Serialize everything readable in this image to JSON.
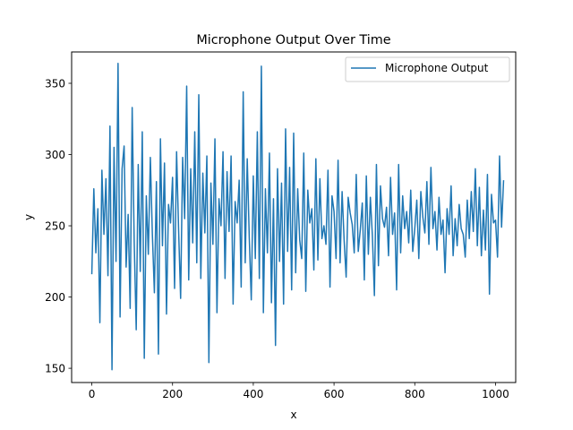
{
  "chart_data": {
    "type": "line",
    "title": "Microphone Output Over Time",
    "xlabel": "x",
    "ylabel": "y",
    "xlim": [
      -50,
      1050
    ],
    "ylim": [
      140,
      372
    ],
    "xticks": [
      0,
      200,
      400,
      600,
      800,
      1000
    ],
    "yticks": [
      150,
      200,
      250,
      300,
      350
    ],
    "xtick_labels": [
      "0",
      "200",
      "400",
      "600",
      "800",
      "1000"
    ],
    "ytick_labels": [
      "150",
      "200",
      "250",
      "300",
      "350"
    ],
    "grid": false,
    "legend_position": "top-right",
    "series": [
      {
        "name": "Microphone Output",
        "color": "#1f77b4",
        "x_start": 0,
        "x_step": 5,
        "values": [
          216,
          276,
          231,
          262,
          182,
          289,
          244,
          283,
          215,
          320,
          149,
          305,
          225,
          364,
          186,
          290,
          306,
          221,
          258,
          192,
          333,
          239,
          177,
          293,
          218,
          316,
          157,
          271,
          230,
          298,
          244,
          203,
          281,
          160,
          311,
          236,
          294,
          188,
          265,
          252,
          284,
          206,
          302,
          247,
          199,
          298,
          255,
          348,
          212,
          290,
          238,
          316,
          224,
          342,
          213,
          287,
          245,
          299,
          154,
          280,
          237,
          311,
          189,
          269,
          250,
          302,
          213,
          288,
          246,
          299,
          195,
          267,
          252,
          282,
          207,
          344,
          224,
          297,
          242,
          198,
          285,
          227,
          316,
          213,
          362,
          189,
          276,
          231,
          301,
          196,
          269,
          166,
          290,
          225,
          280,
          195,
          318,
          232,
          291,
          205,
          315,
          217,
          276,
          240,
          227,
          301,
          204,
          275,
          252,
          262,
          219,
          297,
          226,
          283,
          241,
          250,
          237,
          289,
          207,
          271,
          260,
          227,
          296,
          224,
          274,
          240,
          214,
          270,
          259,
          251,
          231,
          286,
          232,
          247,
          266,
          212,
          285,
          230,
          270,
          243,
          201,
          293,
          222,
          278,
          255,
          249,
          263,
          229,
          284,
          244,
          259,
          205,
          293,
          231,
          271,
          248,
          260,
          238,
          275,
          232,
          248,
          268,
          227,
          274,
          256,
          245,
          281,
          237,
          291,
          248,
          260,
          233,
          270,
          244,
          254,
          217,
          262,
          244,
          278,
          229,
          255,
          236,
          265,
          248,
          244,
          228,
          268,
          241,
          274,
          246,
          290,
          236,
          277,
          229,
          261,
          233,
          286,
          202,
          272,
          252,
          254,
          228,
          299,
          249,
          282
        ]
      }
    ]
  }
}
